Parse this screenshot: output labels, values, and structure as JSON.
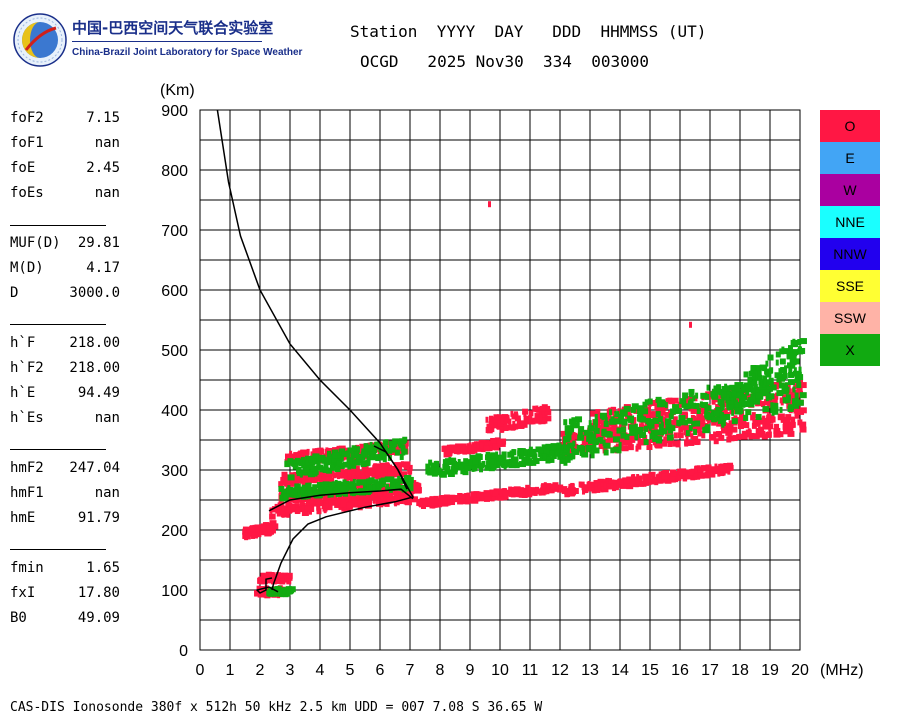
{
  "header": {
    "lab_name_cn": "中国-巴西空间天气联合实验室",
    "lab_name_en": "China-Brazil Joint Laboratory for Space Weather",
    "line1": "Station  YYYY  DAY   DDD  HHMMSS (UT)",
    "line2": "OCGD   2025 Nov30  334  003000"
  },
  "params": [
    {
      "key": "foF2",
      "value": "7.15"
    },
    {
      "key": "foF1",
      "value": "nan"
    },
    {
      "key": "foE",
      "value": "2.45"
    },
    {
      "key": "foEs",
      "value": "nan"
    },
    {
      "key": "MUF(D)",
      "value": "29.81"
    },
    {
      "key": "M(D)",
      "value": "4.17"
    },
    {
      "key": "D",
      "value": "3000.0"
    },
    {
      "key": "h`F",
      "value": "218.00"
    },
    {
      "key": "h`F2",
      "value": "218.00"
    },
    {
      "key": "h`E",
      "value": "94.49"
    },
    {
      "key": "h`Es",
      "value": "nan"
    },
    {
      "key": "hmF2",
      "value": "247.04"
    },
    {
      "key": "hmF1",
      "value": "nan"
    },
    {
      "key": "hmE",
      "value": "91.79"
    },
    {
      "key": "fmin",
      "value": "1.65"
    },
    {
      "key": "fxI",
      "value": "17.80"
    },
    {
      "key": "B0",
      "value": "49.09"
    }
  ],
  "legend": [
    {
      "label": "O",
      "color": "#ff1744"
    },
    {
      "label": "E",
      "color": "#42a5f5"
    },
    {
      "label": "W",
      "color": "#aa00a0"
    },
    {
      "label": "NNE",
      "color": "#1affff"
    },
    {
      "label": "NNW",
      "color": "#2200ee"
    },
    {
      "label": "SSE",
      "color": "#ffff33"
    },
    {
      "label": "SSW",
      "color": "#ffb3a7"
    },
    {
      "label": "X",
      "color": "#11aa11"
    }
  ],
  "footer": "CAS-DIS Ionosonde 380f x 512h 50 kHz 2.5 km UDD = 007 7.08 S 36.65 W",
  "chart_data": {
    "type": "scatter",
    "title": "",
    "xlabel": "(MHz)",
    "ylabel": "(Km)",
    "xlim": [
      0,
      20
    ],
    "ylim": [
      0,
      900
    ],
    "xticks": [
      0,
      1,
      2,
      3,
      4,
      5,
      6,
      7,
      8,
      9,
      10,
      11,
      12,
      13,
      14,
      15,
      16,
      17,
      18,
      19,
      20
    ],
    "yticks": [
      0,
      100,
      200,
      300,
      400,
      500,
      600,
      700,
      800,
      900
    ],
    "grid": true,
    "series": [
      {
        "name": "O",
        "color": "#ff1744",
        "traces": [
          {
            "x": [
              1.8,
              2.8
            ],
            "y": [
              97,
              97
            ],
            "spread": 6
          },
          {
            "x": [
              1.9,
              2.9
            ],
            "y": [
              120,
              120
            ],
            "spread": 6
          },
          {
            "x": [
              1.4,
              2.4
            ],
            "y": [
              193,
              205
            ],
            "spread": 8
          },
          {
            "x": [
              2.3,
              7.2
            ],
            "y": [
              232,
              258
            ],
            "spread": 10
          },
          {
            "x": [
              2.6,
              7.2
            ],
            "y": [
              256,
              272
            ],
            "spread": 8
          },
          {
            "x": [
              2.6,
              7.0
            ],
            "y": [
              283,
              303
            ],
            "spread": 9
          },
          {
            "x": [
              2.8,
              6.8
            ],
            "y": [
              318,
              338
            ],
            "spread": 9
          },
          {
            "x": [
              7.2,
              12.0
            ],
            "y": [
              243,
              272
            ],
            "spread": 6
          },
          {
            "x": [
              12.0,
              17.6
            ],
            "y": [
              265,
              303
            ],
            "spread": 7
          },
          {
            "x": [
              12.0,
              20.0
            ],
            "y": [
              342,
              382
            ],
            "spread": 20
          },
          {
            "x": [
              13.0,
              20.0
            ],
            "y": [
              375,
              430
            ],
            "spread": 22
          },
          {
            "x": [
              9.5,
              11.5
            ],
            "y": [
              373,
              395
            ],
            "spread": 12
          },
          {
            "x": [
              8.0,
              10.0
            ],
            "y": [
              330,
              345
            ],
            "spread": 6
          }
        ],
        "isolated": [
          {
            "x": 9.6,
            "y": 743
          },
          {
            "x": 16.3,
            "y": 542
          }
        ]
      },
      {
        "name": "X",
        "color": "#11aa11",
        "traces": [
          {
            "x": [
              2.2,
              3.0
            ],
            "y": [
              98,
              98
            ],
            "spread": 5
          },
          {
            "x": [
              2.6,
              7.0
            ],
            "y": [
              262,
              278
            ],
            "spread": 10
          },
          {
            "x": [
              2.8,
              6.8
            ],
            "y": [
              300,
              338
            ],
            "spread": 15
          },
          {
            "x": [
              7.5,
              12.0
            ],
            "y": [
              300,
              330
            ],
            "spread": 12
          },
          {
            "x": [
              12.0,
              20.0
            ],
            "y": [
              345,
              440
            ],
            "spread": 35
          },
          {
            "x": [
              17.0,
              20.0
            ],
            "y": [
              400,
              495
            ],
            "spread": 28
          }
        ],
        "isolated": []
      }
    ],
    "lines": [
      {
        "name": "profile",
        "points": [
          [
            0.58,
            900
          ],
          [
            0.95,
            780
          ],
          [
            1.35,
            690
          ],
          [
            2.0,
            600
          ],
          [
            3.0,
            510
          ],
          [
            4.0,
            450
          ],
          [
            5.0,
            400
          ],
          [
            6.0,
            345
          ],
          [
            6.6,
            300
          ],
          [
            7.1,
            255
          ],
          [
            6.5,
            247
          ],
          [
            5.5,
            238
          ],
          [
            4.2,
            222
          ],
          [
            3.6,
            210
          ],
          [
            3.1,
            185
          ],
          [
            2.7,
            145
          ],
          [
            2.45,
            110
          ],
          [
            2.4,
            100
          ]
        ]
      },
      {
        "name": "trace-mid",
        "points": [
          [
            2.3,
            232
          ],
          [
            3.0,
            250
          ],
          [
            4.0,
            258
          ],
          [
            5.0,
            262
          ],
          [
            6.0,
            265
          ],
          [
            6.7,
            268
          ],
          [
            7.1,
            252
          ]
        ]
      },
      {
        "name": "trace-upper",
        "points": [
          [
            5.8,
            340
          ],
          [
            6.2,
            330
          ],
          [
            6.6,
            300
          ],
          [
            6.9,
            268
          ]
        ]
      },
      {
        "name": "trace-low",
        "points": [
          [
            2.4,
            120
          ],
          [
            2.2,
            118
          ],
          [
            2.2,
            100
          ],
          [
            2.0,
            95
          ],
          [
            1.9,
            100
          ],
          [
            2.3,
            105
          ],
          [
            2.6,
            97
          ]
        ]
      }
    ]
  }
}
